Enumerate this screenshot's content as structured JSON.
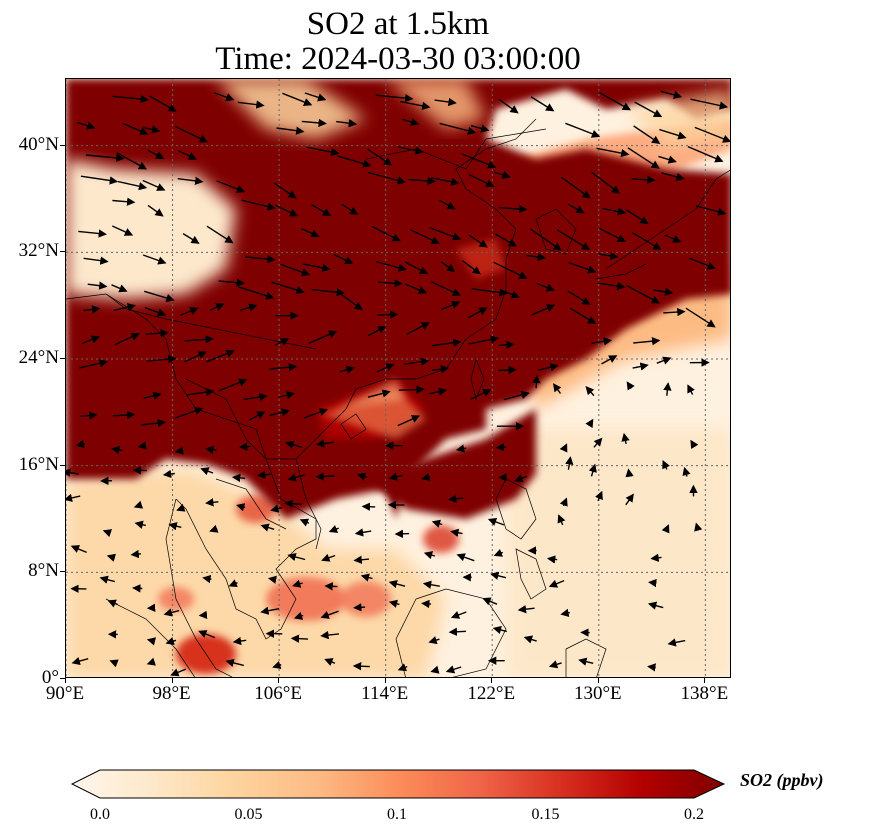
{
  "figure": {
    "title_line1": "SO2 at 1.5km",
    "title_line2": "Time: 2024-03-30 03:00:00"
  },
  "map": {
    "variable": "SO2",
    "units": "ppbv",
    "projection": "PlateCarree",
    "lon_range": [
      90,
      140
    ],
    "lat_range": [
      0,
      45
    ],
    "gridlines": "dotted",
    "vectors": "wind arrows",
    "coastlines": true,
    "x_ticks": [
      {
        "value": 90,
        "label": "90°E"
      },
      {
        "value": 98,
        "label": "98°E"
      },
      {
        "value": 106,
        "label": "106°E"
      },
      {
        "value": 114,
        "label": "114°E"
      },
      {
        "value": 122,
        "label": "122°E"
      },
      {
        "value": 130,
        "label": "130°E"
      },
      {
        "value": 138,
        "label": "138°E"
      }
    ],
    "y_ticks": [
      {
        "value": 0,
        "label": "0°"
      },
      {
        "value": 8,
        "label": "8°N"
      },
      {
        "value": 16,
        "label": "16°N"
      },
      {
        "value": 24,
        "label": "24°N"
      },
      {
        "value": 32,
        "label": "32°N"
      },
      {
        "value": 40,
        "label": "40°N"
      }
    ]
  },
  "colorbar": {
    "label": "SO2 (ppbv)",
    "min": 0.0,
    "max": 0.2,
    "extend": "both",
    "cmap": "OrRd",
    "colors": [
      "#fff7ec",
      "#fee8c8",
      "#fdd49e",
      "#fdbb84",
      "#fc8d59",
      "#ef6548",
      "#d7301f",
      "#b30000",
      "#7f0000"
    ],
    "ticks": [
      {
        "value": 0.0,
        "label": "0.0"
      },
      {
        "value": 0.05,
        "label": "0.05"
      },
      {
        "value": 0.1,
        "label": "0.1"
      },
      {
        "value": 0.15,
        "label": "0.15"
      },
      {
        "value": 0.2,
        "label": "0.2"
      }
    ]
  }
}
